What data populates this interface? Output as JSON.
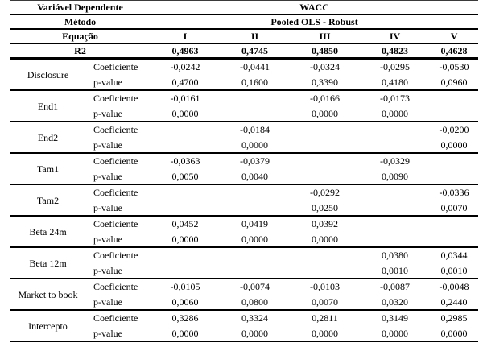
{
  "table": {
    "header": {
      "dependent_var_label": "Variável Dependente",
      "dependent_var_value": "WACC",
      "method_label": "Método",
      "method_value": "Pooled OLS - Robust",
      "equation_label": "Equação",
      "equation_columns": [
        "I",
        "II",
        "III",
        "IV",
        "V"
      ],
      "r2_label": "R2",
      "r2_values": [
        "0,4963",
        "0,4745",
        "0,4850",
        "0,4823",
        "0,4628"
      ]
    },
    "row_labels": {
      "coef": "Coeficiente",
      "pvalue": "p-value"
    },
    "groups": [
      {
        "name": "Disclosure",
        "coef": [
          "-0,0242",
          "-0,0441",
          "-0,0324",
          "-0,0295",
          "-0,0530"
        ],
        "pvalue": [
          "0,4700",
          "0,1600",
          "0,3390",
          "0,4180",
          "0,0960"
        ]
      },
      {
        "name": "End1",
        "coef": [
          "-0,0161",
          "",
          "-0,0166",
          "-0,0173",
          ""
        ],
        "pvalue": [
          "0,0000",
          "",
          "0,0000",
          "0,0000",
          ""
        ]
      },
      {
        "name": "End2",
        "coef": [
          "",
          "-0,0184",
          "",
          "",
          "-0,0200"
        ],
        "pvalue": [
          "",
          "0,0000",
          "",
          "",
          "0,0000"
        ]
      },
      {
        "name": "Tam1",
        "coef": [
          "-0,0363",
          "-0,0379",
          "",
          "-0,0329",
          ""
        ],
        "pvalue": [
          "0,0050",
          "0,0040",
          "",
          "0,0090",
          ""
        ]
      },
      {
        "name": "Tam2",
        "coef": [
          "",
          "",
          "-0,0292",
          "",
          "-0,0336"
        ],
        "pvalue": [
          "",
          "",
          "0,0250",
          "",
          "0,0070"
        ]
      },
      {
        "name": "Beta 24m",
        "coef": [
          "0,0452",
          "0,0419",
          "0,0392",
          "",
          ""
        ],
        "pvalue": [
          "0,0000",
          "0,0000",
          "0,0000",
          "",
          ""
        ]
      },
      {
        "name": "Beta 12m",
        "coef": [
          "",
          "",
          "",
          "0,0380",
          "0,0344"
        ],
        "pvalue": [
          "",
          "",
          "",
          "0,0010",
          "0,0010"
        ]
      },
      {
        "name": "Market to book",
        "coef": [
          "-0,0105",
          "-0,0074",
          "-0,0103",
          "-0,0087",
          "-0,0048"
        ],
        "pvalue": [
          "0,0060",
          "0,0800",
          "0,0070",
          "0,0320",
          "0,2440"
        ]
      },
      {
        "name": "Intercepto",
        "coef": [
          "0,3286",
          "0,3324",
          "0,2811",
          "0,3149",
          "0,2985"
        ],
        "pvalue": [
          "0,0000",
          "0,0000",
          "0,0000",
          "0,0000",
          "0,0000"
        ]
      }
    ],
    "colors": {
      "text": "#000000",
      "rule": "#000000",
      "background": "#ffffff"
    }
  }
}
